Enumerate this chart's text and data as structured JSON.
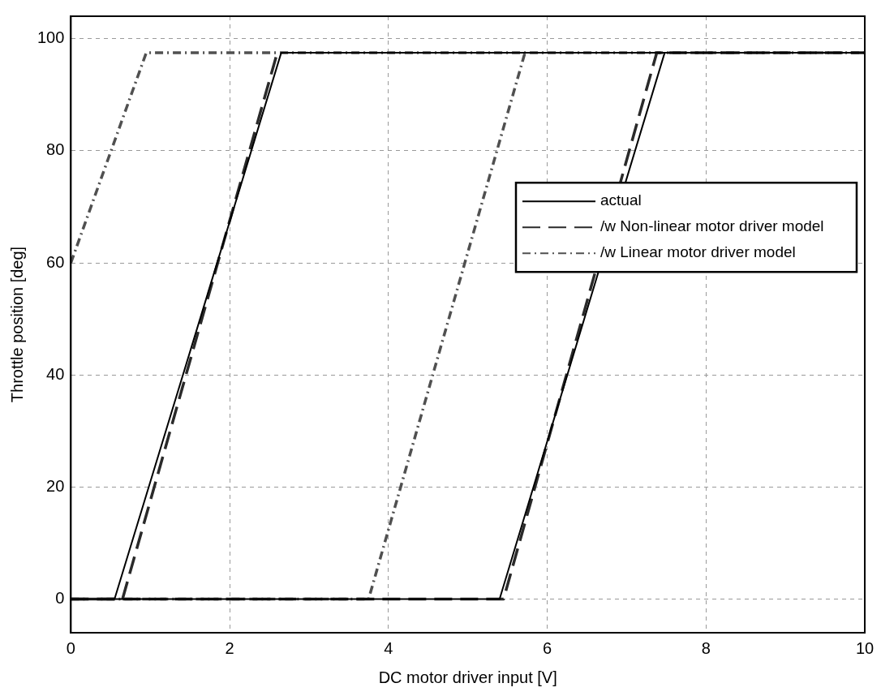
{
  "chart_data": {
    "type": "line",
    "xlabel": "DC motor driver input [V]",
    "ylabel": "Throttle position [deg]",
    "xlim": [
      0,
      10
    ],
    "xticks": [
      0,
      2,
      4,
      6,
      8,
      10
    ],
    "ylim": [
      -6,
      104
    ],
    "yticks": [
      0,
      20,
      40,
      60,
      80,
      100
    ],
    "grid": true,
    "legend": "right",
    "marker": "none",
    "series": [
      {
        "name": "actual",
        "color": "#000000",
        "line_style": "solid",
        "x": [
          0,
          5.4,
          7.48,
          10
        ],
        "values": [
          0,
          0,
          97.5,
          97.5
        ]
      },
      {
        "color": "#000000",
        "line_style": "solid",
        "x": [
          0.55,
          2.65,
          10
        ],
        "values": [
          0,
          97.5,
          97.5
        ]
      },
      {
        "name": "/w Non-linear motor driver model",
        "color": "#2a2a2a",
        "line_style": "dashed",
        "x": [
          0,
          5.45,
          7.38,
          10
        ],
        "values": [
          0,
          0,
          97.5,
          97.5
        ]
      },
      {
        "color": "#2a2a2a",
        "line_style": "dashed",
        "x": [
          0,
          0.65,
          2.6
        ],
        "values": [
          0,
          0,
          97.5
        ]
      },
      {
        "name": "/w Linear motor driver model",
        "color": "#505050",
        "line_style": "dotted",
        "x": [
          0,
          3.75,
          5.72
        ],
        "values": [
          0,
          0,
          97.5
        ]
      },
      {
        "color": "#505050",
        "line_style": "dotted",
        "x": [
          0,
          0.95,
          10
        ],
        "values": [
          60,
          97.5,
          97.5
        ]
      }
    ]
  }
}
